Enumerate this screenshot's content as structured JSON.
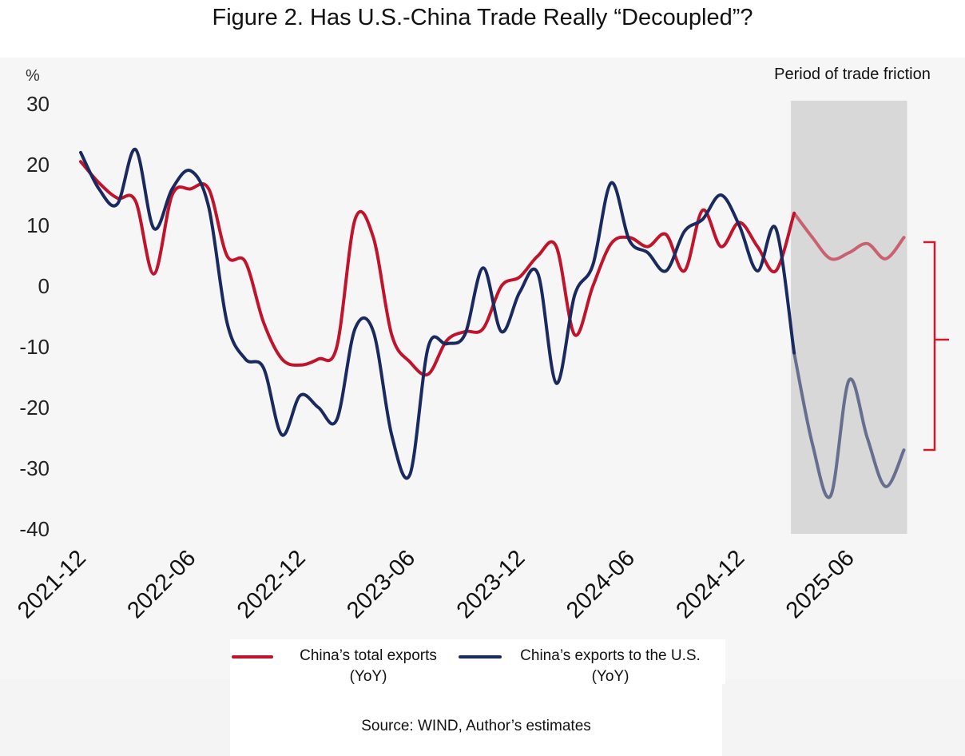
{
  "title": "Figure 2. Has U.S.-China Trade Really “Decoupled”?",
  "unit": "%",
  "annotation": "Period of trade friction",
  "source": "Source: WIND, Author’s estimates",
  "legend": [
    {
      "label_line1": "China’s total exports",
      "label_line2": "(YoY)",
      "color": "#c0142c"
    },
    {
      "label_line1": "China’s exports to the U.S.",
      "label_line2": "(YoY)",
      "color": "#1b2a5e"
    }
  ],
  "chart_data": {
    "type": "line",
    "title": "Figure 2. Has U.S.-China Trade Really “Decoupled”?",
    "ylabel": "%",
    "ylim": [
      -40,
      30
    ],
    "yticks": [
      30,
      20,
      10,
      0,
      -10,
      -20,
      -30,
      -40
    ],
    "x_range": [
      "2021-12",
      "2025-09"
    ],
    "xticks": [
      "2021-12",
      "2022-06",
      "2022-12",
      "2023-06",
      "2023-12",
      "2024-06",
      "2024-12",
      "2025-06"
    ],
    "shaded_region": {
      "from": "2025-03",
      "to": "2025-09",
      "label": "Period of trade friction",
      "color": "#d8d8d8"
    },
    "grid": false,
    "series": [
      {
        "name": "China’s total exports (YoY)",
        "color": "#c0142c",
        "x": [
          "2021-12",
          "2022-01",
          "2022-02",
          "2022-03",
          "2022-04",
          "2022-05",
          "2022-06",
          "2022-07",
          "2022-08",
          "2022-09",
          "2022-10",
          "2022-11",
          "2022-12",
          "2023-01",
          "2023-02",
          "2023-03",
          "2023-04",
          "2023-05",
          "2023-06",
          "2023-07",
          "2023-08",
          "2023-09",
          "2023-10",
          "2023-11",
          "2023-12",
          "2024-01",
          "2024-02",
          "2024-03",
          "2024-04",
          "2024-05",
          "2024-06",
          "2024-07",
          "2024-08",
          "2024-09",
          "2024-10",
          "2024-11",
          "2024-12",
          "2025-01",
          "2025-02",
          "2025-03",
          "2025-04",
          "2025-05",
          "2025-06",
          "2025-07",
          "2025-08",
          "2025-09"
        ],
        "values": [
          20.5,
          17,
          14.5,
          14,
          2,
          15,
          16,
          16,
          5,
          4,
          -6,
          -12,
          -13,
          -12,
          -10,
          11,
          8,
          -8,
          -12.5,
          -14.5,
          -9,
          -7.5,
          -7,
          0,
          1.5,
          5,
          6.5,
          -8,
          0,
          7,
          8,
          6.5,
          8.5,
          2.5,
          12.5,
          6.5,
          10.5,
          6.5,
          2.5,
          12,
          8,
          4.5,
          5.5,
          7,
          4.5,
          8
        ]
      },
      {
        "name": "China’s exports to the U.S. (YoY)",
        "color": "#1b2a5e",
        "x": [
          "2021-12",
          "2022-01",
          "2022-02",
          "2022-03",
          "2022-04",
          "2022-05",
          "2022-06",
          "2022-07",
          "2022-08",
          "2022-09",
          "2022-10",
          "2022-11",
          "2022-12",
          "2023-01",
          "2023-02",
          "2023-03",
          "2023-04",
          "2023-05",
          "2023-06",
          "2023-07",
          "2023-08",
          "2023-09",
          "2023-10",
          "2023-11",
          "2023-12",
          "2024-01",
          "2024-02",
          "2024-03",
          "2024-04",
          "2024-05",
          "2024-06",
          "2024-07",
          "2024-08",
          "2024-09",
          "2024-10",
          "2024-11",
          "2024-12",
          "2025-01",
          "2025-02",
          "2025-03",
          "2025-04",
          "2025-05",
          "2025-06",
          "2025-07",
          "2025-08",
          "2025-09"
        ],
        "values": [
          22,
          16,
          13.5,
          22.5,
          9.5,
          16,
          19,
          13,
          -6,
          -12,
          -13.5,
          -24.5,
          -18,
          -20,
          -22,
          -7,
          -7.5,
          -24.5,
          -31,
          -10,
          -9.5,
          -8,
          3,
          -7.5,
          -1,
          2,
          -16,
          -1.5,
          3.5,
          17,
          7.5,
          5.5,
          2.5,
          9,
          11,
          15,
          10,
          2.5,
          9.5,
          -11,
          -26,
          -34.5,
          -15.5,
          -25,
          -33,
          -27
        ]
      }
    ]
  }
}
